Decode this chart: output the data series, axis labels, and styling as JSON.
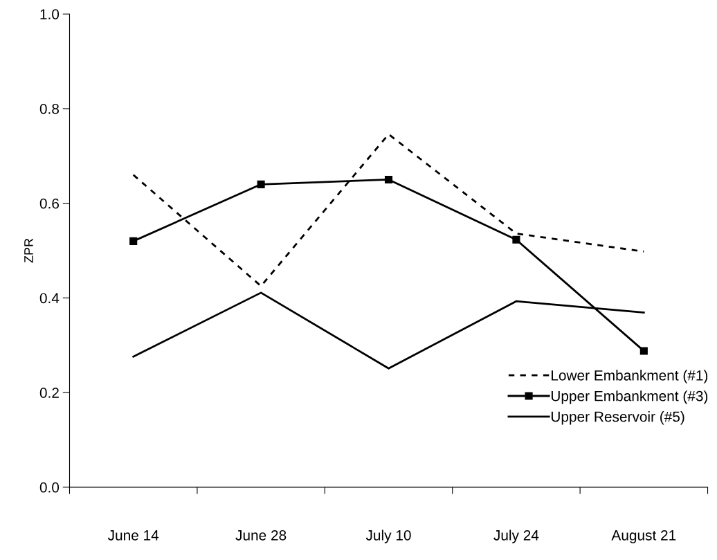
{
  "chart_data": {
    "type": "line",
    "ylabel": "ZPR",
    "categories": [
      "June 14",
      "June 28",
      "July 10",
      "July 24",
      "August 21"
    ],
    "series": [
      {
        "name": "Lower Embankment (#1)",
        "color": "#000000",
        "line_style": "dotted",
        "marker": "none",
        "values": [
          0.66,
          0.425,
          0.746,
          0.536,
          0.498
        ]
      },
      {
        "name": "Upper Embankment (#3)",
        "color": "#000000",
        "line_style": "solid",
        "marker": "square",
        "values": [
          0.52,
          0.64,
          0.65,
          0.523,
          0.288
        ]
      },
      {
        "name": "Upper Reservoir (#5)",
        "color": "#000000",
        "line_style": "solid",
        "marker": "none",
        "values": [
          0.276,
          0.411,
          0.251,
          0.393,
          0.369
        ]
      }
    ],
    "ylim": [
      0,
      1
    ],
    "yticks": [
      {
        "value": 0,
        "label": "0.0"
      },
      0.2,
      0.4,
      0.6,
      0.8,
      {
        "value": 1,
        "label": "1.0"
      }
    ],
    "grid": false,
    "legend": "bottom right"
  }
}
